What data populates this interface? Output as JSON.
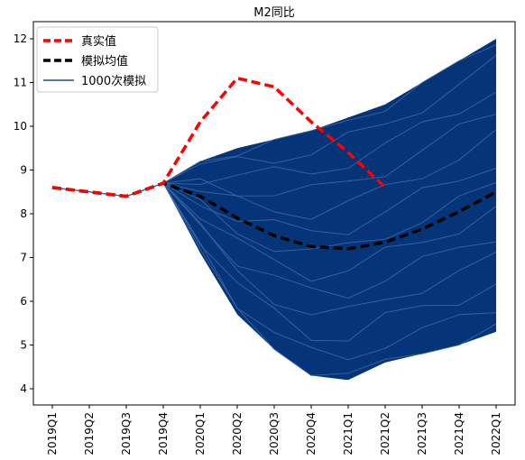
{
  "chart_data": {
    "type": "line",
    "title": "M2同比",
    "xlabel": "",
    "ylabel": "",
    "categories": [
      "2019Q1",
      "2019Q2",
      "2019Q3",
      "2019Q4",
      "2020Q1",
      "2020Q2",
      "2020Q3",
      "2020Q4",
      "2021Q1",
      "2021Q2",
      "2021Q3",
      "2021Q4",
      "2022Q1"
    ],
    "ylim": [
      3.6,
      12.4
    ],
    "yticks": [
      4,
      5,
      6,
      7,
      8,
      9,
      10,
      11,
      12
    ],
    "grid": false,
    "legend_position": "top-left",
    "series": [
      {
        "name": "真实值",
        "style": "dashed",
        "color": "#ff0000",
        "values": [
          8.6,
          8.5,
          8.4,
          8.7,
          10.1,
          11.1,
          10.9,
          10.1,
          9.4,
          8.6,
          null,
          null,
          null
        ]
      },
      {
        "name": "模拟均值",
        "style": "dashed",
        "color": "#000000",
        "values": [
          8.6,
          8.5,
          8.4,
          8.7,
          8.4,
          7.9,
          7.5,
          7.25,
          7.2,
          7.35,
          7.65,
          8.05,
          8.5
        ]
      },
      {
        "name": "1000次模拟",
        "style": "solid",
        "color": "#1f4e8c",
        "band": {
          "lower": [
            8.6,
            8.5,
            8.4,
            8.7,
            7.1,
            5.7,
            4.9,
            4.3,
            4.2,
            4.6,
            4.8,
            5.0,
            5.3
          ],
          "upper": [
            8.6,
            8.5,
            8.4,
            8.7,
            9.2,
            9.5,
            9.7,
            9.9,
            10.2,
            10.5,
            11.0,
            11.5,
            12.0
          ]
        }
      }
    ]
  }
}
